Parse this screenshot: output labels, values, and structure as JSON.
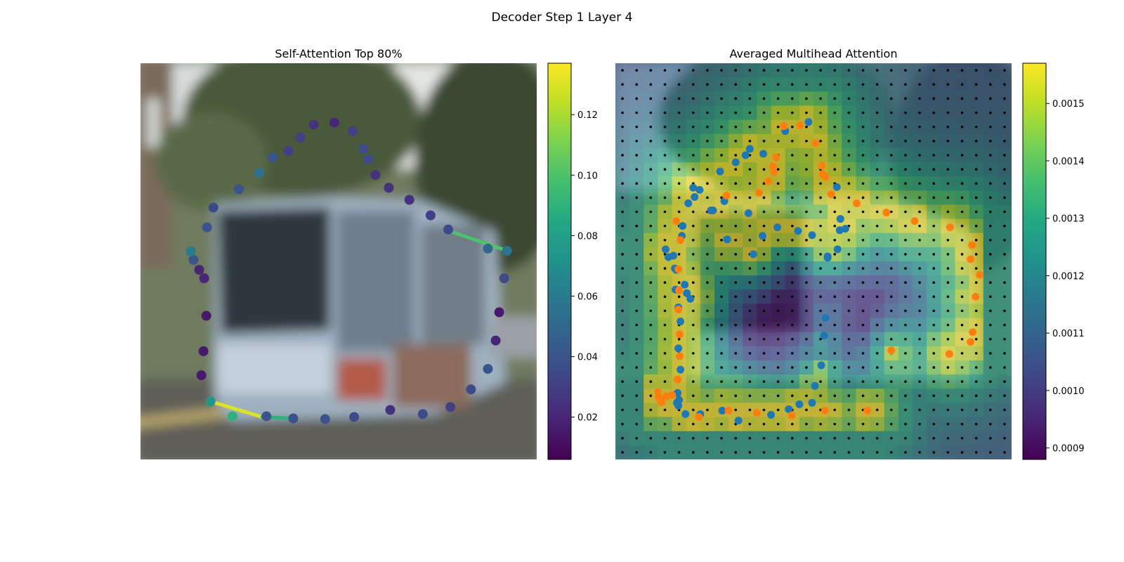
{
  "figure": {
    "suptitle": "Decoder Step 1 Layer 4"
  },
  "colors": {
    "viridis": [
      "#440154",
      "#482475",
      "#414487",
      "#355f8d",
      "#2a788e",
      "#21918c",
      "#22a884",
      "#44bf70",
      "#7ad151",
      "#bddf26",
      "#fde725"
    ],
    "blue_points": "#1f77b4",
    "orange_points": "#ff7f0e",
    "grid_dots": "#000000"
  },
  "chart_data": [
    {
      "type": "scatter",
      "title": "Self-Attention Top 80%",
      "background": "blurred street photo with tram",
      "colorbar": {
        "ticks": [
          "0.02",
          "0.04",
          "0.06",
          "0.08",
          "0.10",
          "0.12"
        ],
        "tick_values": [
          0.02,
          0.04,
          0.06,
          0.08,
          0.1,
          0.12
        ],
        "range": [
          0.006,
          0.137
        ]
      },
      "xlim": [
        0,
        560
      ],
      "ylim": [
        560,
        0
      ],
      "points": [
        {
          "x": 274,
          "y": 84,
          "v": 0.02
        },
        {
          "x": 300,
          "y": 96,
          "v": 0.03
        },
        {
          "x": 315,
          "y": 121,
          "v": 0.035
        },
        {
          "x": 322,
          "y": 136,
          "v": 0.035
        },
        {
          "x": 332,
          "y": 158,
          "v": 0.025
        },
        {
          "x": 351,
          "y": 176,
          "v": 0.025
        },
        {
          "x": 380,
          "y": 193,
          "v": 0.025
        },
        {
          "x": 410,
          "y": 215,
          "v": 0.03
        },
        {
          "x": 435,
          "y": 235,
          "v": 0.035
        },
        {
          "x": 491,
          "y": 262,
          "v": 0.05
        },
        {
          "x": 518,
          "y": 265,
          "v": 0.055
        },
        {
          "x": 514,
          "y": 304,
          "v": 0.035
        },
        {
          "x": 507,
          "y": 352,
          "v": 0.015
        },
        {
          "x": 502,
          "y": 392,
          "v": 0.02
        },
        {
          "x": 491,
          "y": 432,
          "v": 0.04
        },
        {
          "x": 467,
          "y": 461,
          "v": 0.035
        },
        {
          "x": 438,
          "y": 486,
          "v": 0.03
        },
        {
          "x": 399,
          "y": 496,
          "v": 0.035
        },
        {
          "x": 353,
          "y": 490,
          "v": 0.025
        },
        {
          "x": 302,
          "y": 500,
          "v": 0.035
        },
        {
          "x": 261,
          "y": 503,
          "v": 0.04
        },
        {
          "x": 216,
          "y": 502,
          "v": 0.04
        },
        {
          "x": 178,
          "y": 499,
          "v": 0.04
        },
        {
          "x": 130,
          "y": 499,
          "v": 0.09
        },
        {
          "x": 99,
          "y": 478,
          "v": 0.075
        },
        {
          "x": 86,
          "y": 441,
          "v": 0.015
        },
        {
          "x": 89,
          "y": 407,
          "v": 0.015
        },
        {
          "x": 93,
          "y": 357,
          "v": 0.015
        },
        {
          "x": 90,
          "y": 304,
          "v": 0.02
        },
        {
          "x": 83,
          "y": 292,
          "v": 0.02
        },
        {
          "x": 75,
          "y": 278,
          "v": 0.04
        },
        {
          "x": 71,
          "y": 266,
          "v": 0.06
        },
        {
          "x": 94,
          "y": 232,
          "v": 0.04
        },
        {
          "x": 103,
          "y": 204,
          "v": 0.035
        },
        {
          "x": 139,
          "y": 178,
          "v": 0.04
        },
        {
          "x": 168,
          "y": 155,
          "v": 0.055
        },
        {
          "x": 187,
          "y": 133,
          "v": 0.04
        },
        {
          "x": 209,
          "y": 124,
          "v": 0.03
        },
        {
          "x": 226,
          "y": 105,
          "v": 0.03
        },
        {
          "x": 245,
          "y": 87,
          "v": 0.025
        }
      ],
      "lines": [
        {
          "x1": 433,
          "y1": 236,
          "x2": 518,
          "y2": 265,
          "v": 0.1
        },
        {
          "x1": 99,
          "y1": 478,
          "x2": 172,
          "y2": 500,
          "v": 0.13
        },
        {
          "x1": 172,
          "y1": 500,
          "x2": 216,
          "y2": 502,
          "v": 0.09
        }
      ]
    },
    {
      "type": "heatmap",
      "title": "Averaged Multihead Attention",
      "colorbar": {
        "ticks": [
          "0.0009",
          "0.0010",
          "0.0011",
          "0.0012",
          "0.0013",
          "0.0014",
          "0.0015"
        ],
        "tick_values": [
          0.0009,
          0.001,
          0.0011,
          0.0012,
          0.0013,
          0.0014,
          0.0015
        ],
        "range": [
          0.00088,
          0.00157
        ]
      },
      "grid_size": 28,
      "xlim": [
        0,
        560
      ],
      "ylim": [
        560,
        0
      ],
      "blue_points": [
        [
          273,
          83
        ],
        [
          240,
          96
        ],
        [
          209,
          128
        ],
        [
          190,
          121
        ],
        [
          184,
          130
        ],
        [
          170,
          140
        ],
        [
          148,
          153
        ],
        [
          119,
          179
        ],
        [
          112,
          189
        ],
        [
          138,
          208
        ],
        [
          103,
          198
        ],
        [
          95,
          230
        ],
        [
          158,
          249
        ],
        [
          154,
          195
        ],
        [
          94,
          244
        ],
        [
          208,
          244
        ],
        [
          195,
          270
        ],
        [
          300,
          273
        ],
        [
          318,
          220
        ],
        [
          317,
          236
        ],
        [
          325,
          234
        ],
        [
          314,
          263
        ],
        [
          278,
          243
        ],
        [
          258,
          237
        ],
        [
          229,
          232
        ],
        [
          188,
          212
        ],
        [
          135,
          208
        ],
        [
          110,
          176
        ],
        [
          313,
          175
        ],
        [
          300,
          275
        ],
        [
          297,
          360
        ],
        [
          295,
          385
        ],
        [
          291,
          427
        ],
        [
          282,
          456
        ],
        [
          278,
          480
        ],
        [
          260,
          482
        ],
        [
          245,
          489
        ],
        [
          220,
          497
        ],
        [
          174,
          505
        ],
        [
          151,
          491
        ],
        [
          120,
          496
        ],
        [
          99,
          496
        ],
        [
          89,
          484
        ],
        [
          87,
          480
        ],
        [
          90,
          476
        ],
        [
          88,
          466
        ],
        [
          92,
          433
        ],
        [
          89,
          403
        ],
        [
          92,
          365
        ],
        [
          89,
          345
        ],
        [
          85,
          320
        ],
        [
          84,
          290
        ],
        [
          82,
          272
        ],
        [
          71,
          263
        ],
        [
          75,
          274
        ],
        [
          86,
          292
        ],
        [
          98,
          313
        ],
        [
          101,
          325
        ],
        [
          106,
          333
        ]
      ],
      "orange_points": [
        [
          261,
          88
        ],
        [
          238,
          89
        ],
        [
          283,
          113
        ],
        [
          227,
          133
        ],
        [
          292,
          145
        ],
        [
          293,
          157
        ],
        [
          297,
          161
        ],
        [
          224,
          154
        ],
        [
          223,
          146
        ],
        [
          216,
          167
        ],
        [
          203,
          183
        ],
        [
          157,
          187
        ],
        [
          305,
          185
        ],
        [
          341,
          198
        ],
        [
          383,
          211
        ],
        [
          423,
          223
        ],
        [
          473,
          232
        ],
        [
          504,
          257
        ],
        [
          502,
          277
        ],
        [
          515,
          299
        ],
        [
          509,
          330
        ],
        [
          505,
          380
        ],
        [
          502,
          394
        ],
        [
          472,
          411
        ],
        [
          390,
          406
        ],
        [
          356,
          491
        ],
        [
          296,
          491
        ],
        [
          249,
          498
        ],
        [
          200,
          494
        ],
        [
          160,
          491
        ],
        [
          118,
          500
        ],
        [
          72,
          471
        ],
        [
          65,
          479
        ],
        [
          61,
          472
        ],
        [
          80,
          469
        ],
        [
          60,
          465
        ],
        [
          88,
          447
        ],
        [
          91,
          383
        ],
        [
          91,
          414
        ],
        [
          89,
          348
        ],
        [
          89,
          291
        ],
        [
          86,
          223
        ],
        [
          92,
          250
        ],
        [
          90,
          321
        ]
      ]
    }
  ]
}
